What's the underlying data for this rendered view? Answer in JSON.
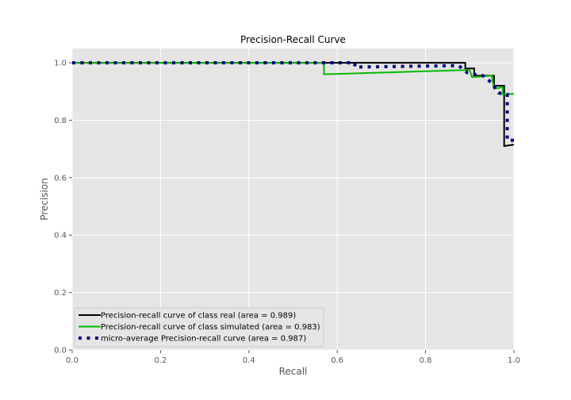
{
  "chart_data": {
    "type": "line",
    "title": "Precision-Recall Curve",
    "xlabel": "Recall",
    "ylabel": "Precision",
    "xlim": [
      0,
      1
    ],
    "ylim": [
      0,
      1.05
    ],
    "xticks": [
      "0.0",
      "0.2",
      "0.4",
      "0.6",
      "0.8",
      "1.0"
    ],
    "yticks": [
      "0.0",
      "0.2",
      "0.4",
      "0.6",
      "0.8",
      "1.0"
    ],
    "grid": true,
    "legend_position": "lower-left",
    "colors": {
      "background": "#e5e5e5",
      "grid": "#ffffff"
    },
    "series": [
      {
        "name": "Precision-recall curve of class real (area = 0.989)",
        "color": "#000000",
        "style": "solid",
        "x": [
          0,
          0.89,
          0.89,
          0.91,
          0.91,
          0.955,
          0.955,
          0.978,
          0.978,
          1.0
        ],
        "y": [
          1.0,
          1.0,
          0.98,
          0.98,
          0.955,
          0.955,
          0.92,
          0.92,
          0.71,
          0.715
        ]
      },
      {
        "name": "Precision-recall curve of class simulated (area = 0.983)",
        "color": "#00bb00",
        "style": "solid",
        "x": [
          0,
          0.57,
          0.57,
          0.9,
          0.905,
          0.95,
          0.955,
          0.975,
          0.975,
          1.0
        ],
        "y": [
          1.0,
          1.0,
          0.96,
          0.975,
          0.95,
          0.955,
          0.91,
          0.915,
          0.89,
          0.892
        ]
      },
      {
        "name": "micro-average Precision-recall curve (area = 0.987)",
        "color": "#000080",
        "style": "dotted",
        "x": [
          0,
          0.64,
          0.64,
          0.875,
          0.895,
          0.91,
          0.93,
          0.95,
          0.965,
          0.985,
          0.985,
          1.0
        ],
        "y": [
          1.0,
          1.0,
          0.985,
          0.99,
          0.965,
          0.96,
          0.955,
          0.93,
          0.895,
          0.89,
          0.73,
          0.73
        ]
      }
    ]
  }
}
